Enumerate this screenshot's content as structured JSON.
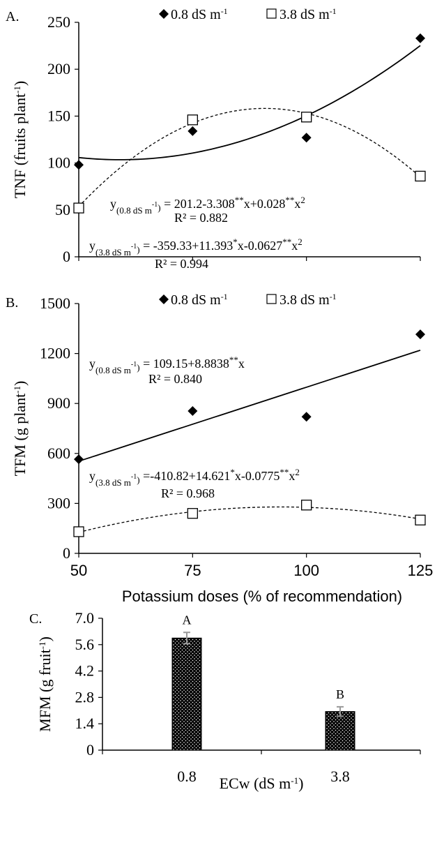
{
  "chart_data": [
    {
      "panel": "A.",
      "type": "scatter",
      "ylabel": "TNF (fruits plant",
      "ylabel_sup": "-1",
      "ylabel_end": ")",
      "ylim": [
        0,
        250
      ],
      "yticks": [
        "0",
        "50",
        "100",
        "150",
        "200",
        "250"
      ],
      "xlim": [
        50,
        125
      ],
      "series": [
        {
          "name": "0.8 dS m",
          "name_sup": "-1",
          "marker": "diamond-filled",
          "line": "solid",
          "x": [
            50,
            75,
            100,
            125
          ],
          "y": [
            98,
            134,
            127,
            233
          ],
          "fit": {
            "type": "quadratic",
            "a": 201.2,
            "b": -3.308,
            "c": 0.028
          }
        },
        {
          "name": "3.8 dS m",
          "name_sup": "-1",
          "marker": "square-open",
          "line": "dashed",
          "x": [
            50,
            75,
            100,
            125
          ],
          "y": [
            52,
            146,
            149,
            86
          ],
          "fit": {
            "type": "quadratic",
            "a": -359.33,
            "b": 11.393,
            "c": -0.0627
          }
        }
      ],
      "equations": [
        {
          "y_prefix": "y",
          "sub": "(0.8 dS m",
          "sub_sup": "-1",
          "sub_end": ")",
          "parts": [
            {
              "t": " = 201.2-3.308"
            },
            {
              "t": "**",
              "sup": true
            },
            {
              "t": "x+0.028"
            },
            {
              "t": "**",
              "sup": true
            },
            {
              "t": "x"
            },
            {
              "t": "2",
              "sup": true
            }
          ],
          "r2": "R² = 0.882"
        },
        {
          "y_prefix": "y",
          "sub": "(3.8 dS m",
          "sub_sup": "-1",
          "sub_end": ")",
          "parts": [
            {
              "t": " = -359.33+11.393"
            },
            {
              "t": "*",
              "sup": true
            },
            {
              "t": "x-0.0627"
            },
            {
              "t": "**",
              "sup": true
            },
            {
              "t": "x"
            },
            {
              "t": "2",
              "sup": true
            }
          ],
          "r2": "R² = 0.994"
        }
      ]
    },
    {
      "panel": "B.",
      "type": "scatter",
      "ylabel": "TFM (g plant",
      "ylabel_sup": "-1",
      "ylabel_end": ")",
      "ylim": [
        0,
        1500
      ],
      "yticks": [
        "0",
        "300",
        "600",
        "900",
        "1200",
        "1500"
      ],
      "xlim": [
        50,
        125
      ],
      "xticks": [
        "50",
        "75",
        "100",
        "125"
      ],
      "xlabel": "Potassium doses (% of recommendation)",
      "series": [
        {
          "name": "0.8 dS m",
          "name_sup": "-1",
          "marker": "diamond-filled",
          "line": "solid",
          "x": [
            50,
            75,
            100,
            125
          ],
          "y": [
            565,
            855,
            820,
            1315
          ],
          "fit": {
            "type": "linear",
            "a": 109.15,
            "b": 8.8838
          }
        },
        {
          "name": "3.8 dS m",
          "name_sup": "-1",
          "marker": "square-open",
          "line": "dashed",
          "x": [
            50,
            75,
            100,
            125
          ],
          "y": [
            130,
            240,
            290,
            200
          ],
          "fit": {
            "type": "quadratic",
            "a": -410.82,
            "b": 14.621,
            "c": -0.0775
          }
        }
      ],
      "equations": [
        {
          "y_prefix": "y",
          "sub": "(0.8 dS m",
          "sub_sup": "-1",
          "sub_end": ")",
          "parts": [
            {
              "t": " = 109.15+8.8838"
            },
            {
              "t": "**",
              "sup": true
            },
            {
              "t": "x"
            }
          ],
          "r2": "R² = 0.840"
        },
        {
          "y_prefix": "y",
          "sub": "(3.8 dS m",
          "sub_sup": "-1",
          "sub_end": ")",
          "parts": [
            {
              "t": " =-410.82+14.621"
            },
            {
              "t": "*",
              "sup": true
            },
            {
              "t": "x-0.0775"
            },
            {
              "t": "**",
              "sup": true
            },
            {
              "t": "x"
            },
            {
              "t": "2",
              "sup": true
            }
          ],
          "r2": "R² = 0.968"
        }
      ]
    },
    {
      "panel": "C.",
      "type": "bar",
      "ylabel": "MFM (g fruit",
      "ylabel_sup": "-1",
      "ylabel_end": ")",
      "ylim": [
        0,
        7.0
      ],
      "yticks": [
        "0",
        "1.4",
        "2.8",
        "4.2",
        "5.6",
        "7.0"
      ],
      "categories": [
        "0.8",
        "3.8"
      ],
      "values": [
        5.95,
        2.05
      ],
      "errors": [
        0.3,
        0.25
      ],
      "letters": [
        "A",
        "B"
      ],
      "xlabel": "ECw (dS m",
      "xlabel_sup": "-1",
      "xlabel_end": ")"
    }
  ]
}
